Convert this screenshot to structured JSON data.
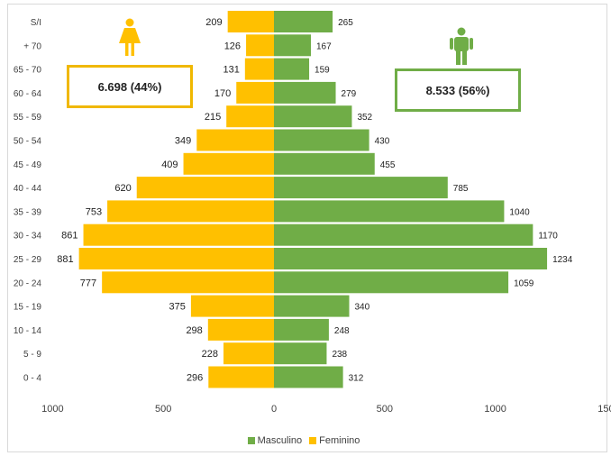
{
  "chart_data": {
    "type": "bar",
    "orientation": "horizontal-population-pyramid",
    "categories": [
      "S/I",
      "+ 70",
      "65 - 70",
      "60 - 64",
      "55 - 59",
      "50 - 54",
      "45 - 49",
      "40 - 44",
      "35 - 39",
      "30 - 34",
      "25 - 29",
      "20 - 24",
      "15 - 19",
      "10 - 14",
      "5 - 9",
      "0 - 4"
    ],
    "series": [
      {
        "name": "Masculino",
        "color": "#70AD47",
        "side": "right",
        "values": [
          265,
          167,
          159,
          279,
          352,
          430,
          455,
          785,
          1040,
          1170,
          1234,
          1059,
          340,
          248,
          238,
          312
        ]
      },
      {
        "name": "Feminino",
        "color": "#FFC000",
        "side": "left",
        "values": [
          209,
          126,
          131,
          170,
          215,
          349,
          409,
          620,
          753,
          861,
          881,
          777,
          375,
          298,
          228,
          296
        ]
      }
    ],
    "x_ticks": [
      "1000",
      "500",
      "0",
      "500",
      "1000",
      "150"
    ],
    "xlim": [
      -1000,
      1500
    ],
    "grid": false,
    "legend_position": "bottom",
    "annotations": {
      "female_total": "6.698 (44%)",
      "male_total": "8.533 (56%)"
    }
  },
  "icons": {
    "female": "female-person-icon",
    "male": "male-person-icon"
  }
}
